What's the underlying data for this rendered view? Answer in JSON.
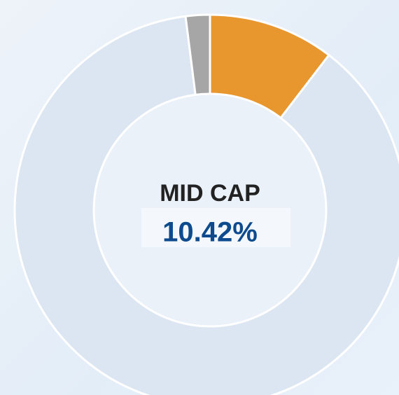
{
  "chart_data": {
    "type": "donut",
    "categories": [
      "MID CAP",
      null,
      null
    ],
    "values": [
      10.42,
      87.58,
      2.0
    ],
    "value_labels": [
      "10.42%",
      null,
      null
    ],
    "colors": [
      "#e8972f",
      "#dbe6f2",
      "#a6a6a6"
    ]
  }
}
